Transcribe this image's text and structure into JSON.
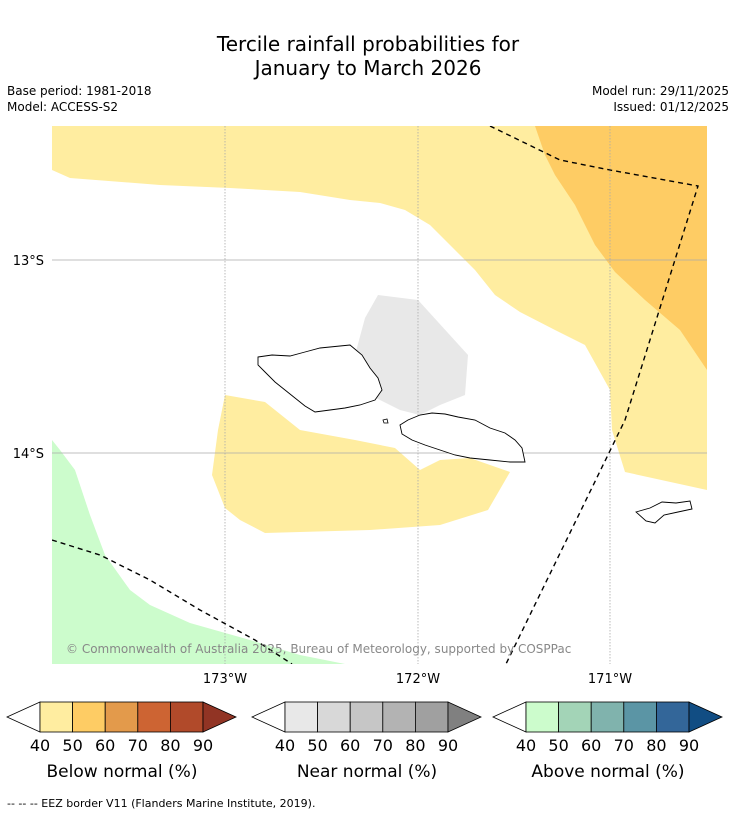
{
  "title": {
    "line1": "Tercile rainfall probabilities for",
    "line2": "January to March 2026"
  },
  "meta": {
    "base_period": "Base period: 1981-2018",
    "model": "Model: ACCESS-S2",
    "model_run": "Model run: 29/11/2025",
    "issued": "Issued: 01/12/2025"
  },
  "axes": {
    "lat_labels": [
      "13°S",
      "14°S"
    ],
    "lon_labels": [
      "173°W",
      "172°W",
      "171°W"
    ]
  },
  "copyright": "© Commonwealth of Australia 2025, Bureau of Meteorology, supported by COSPPac",
  "legends": [
    {
      "label": "Below normal (%)",
      "ticks": [
        "40",
        "50",
        "60",
        "70",
        "80",
        "90"
      ],
      "colors": [
        "#ffeda0",
        "#fecc64",
        "#e39a4b",
        "#cd6433",
        "#b14a2a",
        "#913424"
      ]
    },
    {
      "label": "Near normal (%)",
      "ticks": [
        "40",
        "50",
        "60",
        "70",
        "80",
        "90"
      ],
      "colors": [
        "#e8e8e8",
        "#d8d8d8",
        "#c6c6c6",
        "#b3b3b3",
        "#a0a0a0",
        "#808080"
      ]
    },
    {
      "label": "Above normal (%)",
      "ticks": [
        "40",
        "50",
        "60",
        "70",
        "80",
        "90"
      ],
      "colors": [
        "#ccfccc",
        "#a3d4b7",
        "#80b3ad",
        "#5b95a5",
        "#336699",
        "#114d83"
      ]
    }
  ],
  "footer": "--  --  -- EEZ border V11 (Flanders Marine Institute, 2019)."
}
